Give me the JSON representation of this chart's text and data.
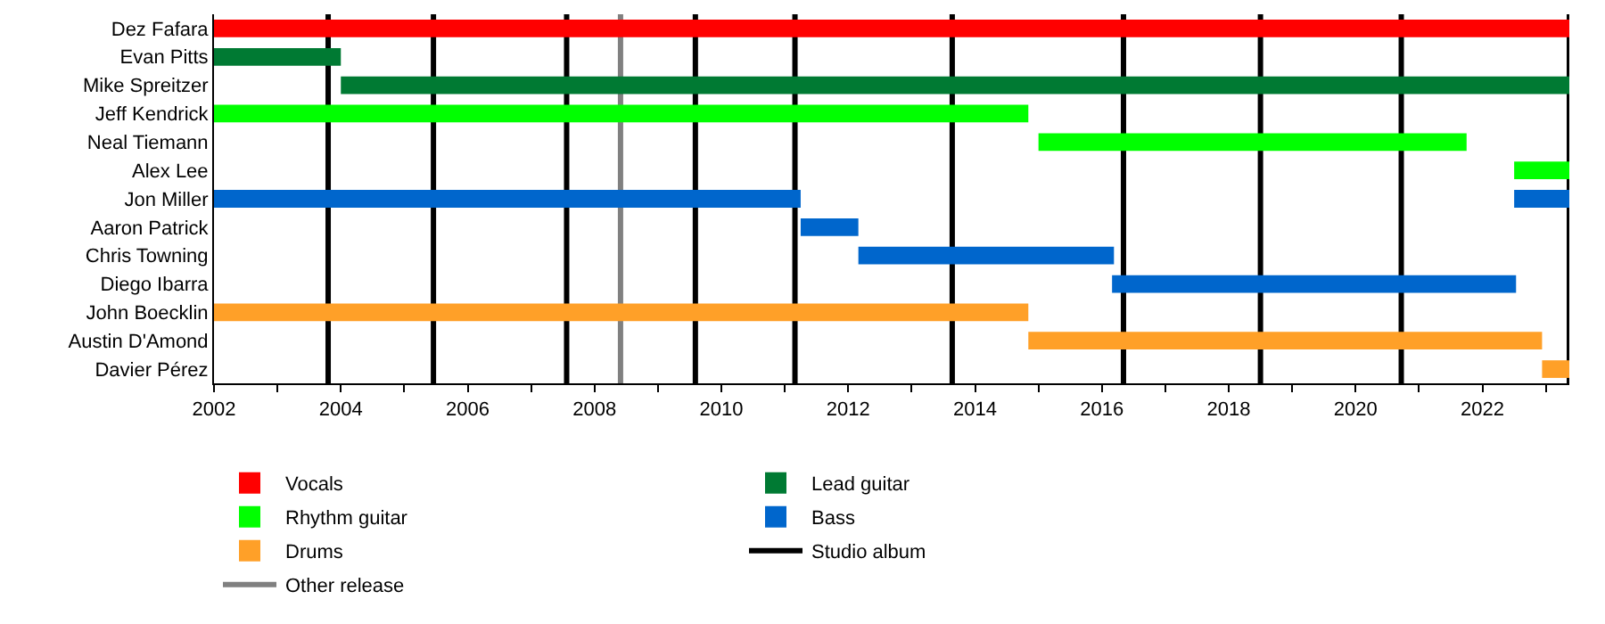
{
  "chart_data": {
    "type": "bar",
    "orientation": "horizontal",
    "categories": [
      "Dez Fafara",
      "Evan Pitts",
      "Mike Spreitzer",
      "Jeff Kendrick",
      "Neal Tiemann",
      "Alex Lee",
      "Jon Miller",
      "Aaron Patrick",
      "Chris Towning",
      "Diego Ibarra",
      "John Boecklin",
      "Austin D'Amond",
      "Davier Pérez"
    ],
    "series": [
      {
        "name": "Vocals",
        "color": "#ff0000",
        "values": [
          21.37,
          null,
          null,
          null,
          null,
          null,
          null,
          null,
          null,
          null,
          null,
          null,
          null
        ],
        "base": [
          2002,
          null,
          null,
          null,
          null,
          null,
          null,
          null,
          null,
          null,
          null,
          null,
          null
        ]
      },
      {
        "name": "Lead guitar",
        "color": "#007a33",
        "values": [
          null,
          2.0,
          19.37,
          null,
          null,
          null,
          null,
          null,
          null,
          null,
          null,
          null,
          null
        ],
        "base": [
          null,
          2002,
          2004.0,
          null,
          null,
          null,
          null,
          null,
          null,
          null,
          null,
          null,
          null
        ]
      },
      {
        "name": "Rhythm guitar",
        "color": "#00ff00",
        "values": [
          null,
          null,
          null,
          12.84,
          6.75,
          0.87,
          null,
          null,
          null,
          null,
          null,
          null,
          null
        ],
        "base": [
          null,
          null,
          null,
          2002,
          2015.0,
          2022.5,
          null,
          null,
          null,
          null,
          null,
          null,
          null
        ]
      },
      {
        "name": "Bass",
        "color": "#0066cc",
        "values": [
          null,
          null,
          null,
          null,
          null,
          null,
          9.25,
          0.91,
          4.03,
          6.37,
          null,
          null,
          null
        ],
        "base": [
          null,
          null,
          null,
          null,
          null,
          null,
          2002,
          2011.25,
          2012.16,
          2016.16,
          null,
          null,
          null
        ]
      },
      {
        "color": "#0066cc",
        "values": [
          null,
          null,
          null,
          null,
          null,
          null,
          0.87,
          null,
          null,
          null,
          null,
          null,
          null
        ],
        "base": [
          null,
          null,
          null,
          null,
          null,
          null,
          2022.5,
          null,
          null,
          null,
          null,
          null,
          null
        ]
      },
      {
        "name": "Drums",
        "color": "#ffa028",
        "values": [
          null,
          null,
          null,
          null,
          null,
          null,
          null,
          null,
          null,
          null,
          12.84,
          8.1,
          0.43
        ],
        "base": [
          null,
          null,
          null,
          null,
          null,
          null,
          null,
          null,
          null,
          null,
          2002,
          2014.84,
          2022.94
        ]
      }
    ],
    "xlim": [
      2002,
      2023.37
    ],
    "xticks": [
      2002,
      {
        "value": 2003,
        "label": null
      },
      2004,
      {
        "value": 2005,
        "label": null
      },
      2006,
      {
        "value": 2007,
        "label": null
      },
      2008,
      {
        "value": 2009,
        "label": null
      },
      2010,
      {
        "value": 2011,
        "label": null
      },
      2012,
      {
        "value": 2013,
        "label": null
      },
      2014,
      {
        "value": 2015,
        "label": null
      },
      2016,
      {
        "value": 2017,
        "label": null
      },
      2018,
      {
        "value": 2019,
        "label": null
      },
      2020,
      {
        "value": 2021,
        "label": null
      },
      2022,
      {
        "value": 2023,
        "label": null
      }
    ],
    "ref_lines": [
      {
        "axis": "x",
        "value": 2003.8,
        "label": "Studio album",
        "color": "#000000"
      },
      {
        "axis": "x",
        "value": 2005.46,
        "label": null,
        "color": "#000000"
      },
      {
        "axis": "x",
        "value": 2007.56,
        "label": null,
        "color": "#000000"
      },
      {
        "axis": "x",
        "value": 2008.41,
        "label": "Other release",
        "color": "#808080"
      },
      {
        "axis": "x",
        "value": 2009.59,
        "label": null,
        "color": "#000000"
      },
      {
        "axis": "x",
        "value": 2011.16,
        "label": null,
        "color": "#000000"
      },
      {
        "axis": "x",
        "value": 2013.64,
        "label": null,
        "color": "#000000"
      },
      {
        "axis": "x",
        "value": 2016.34,
        "label": null,
        "color": "#000000"
      },
      {
        "axis": "x",
        "value": 2018.5,
        "label": null,
        "color": "#000000"
      },
      {
        "axis": "x",
        "value": 2020.72,
        "label": null,
        "color": "#000000"
      },
      {
        "axis": "x",
        "value": 2023.37,
        "label": null,
        "color": "#000000"
      }
    ],
    "grid": false,
    "legend": "bottom"
  }
}
